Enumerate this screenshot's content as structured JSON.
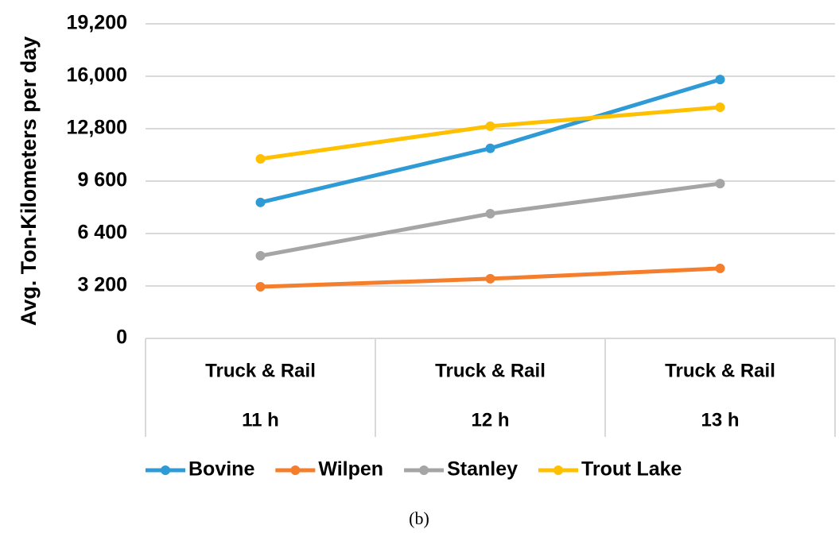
{
  "chart_data": {
    "type": "line",
    "y_label": "Avg. Ton-Kilometers per day",
    "caption": "(b)",
    "categories": [
      [
        "Truck & Rail",
        "11 h"
      ],
      [
        "Truck & Rail",
        "12 h"
      ],
      [
        "Truck & Rail",
        "13 h"
      ]
    ],
    "series": [
      {
        "name": "Bovine",
        "color": "#2e9ad6",
        "values": [
          8300,
          11600,
          15800
        ]
      },
      {
        "name": "Wilpen",
        "color": "#f47e2c",
        "values": [
          3150,
          3640,
          4270
        ]
      },
      {
        "name": "Stanley",
        "color": "#a5a5a5",
        "values": [
          5040,
          7610,
          9450
        ]
      },
      {
        "name": "Trout Lake",
        "color": "#ffc000",
        "values": [
          10960,
          12950,
          14110
        ]
      }
    ],
    "ylim": [
      0,
      19200
    ],
    "yticks": [
      0,
      {
        "value": 3200,
        "label": "3 200"
      },
      {
        "value": 6400,
        "label": "6 400"
      },
      {
        "value": 9600,
        "label": "9 600"
      },
      {
        "value": 12800,
        "label": "12,800"
      },
      {
        "value": 16000,
        "label": "16,000"
      },
      {
        "value": 19200,
        "label": "19,200"
      }
    ],
    "grid": true,
    "legend": "bottom"
  }
}
